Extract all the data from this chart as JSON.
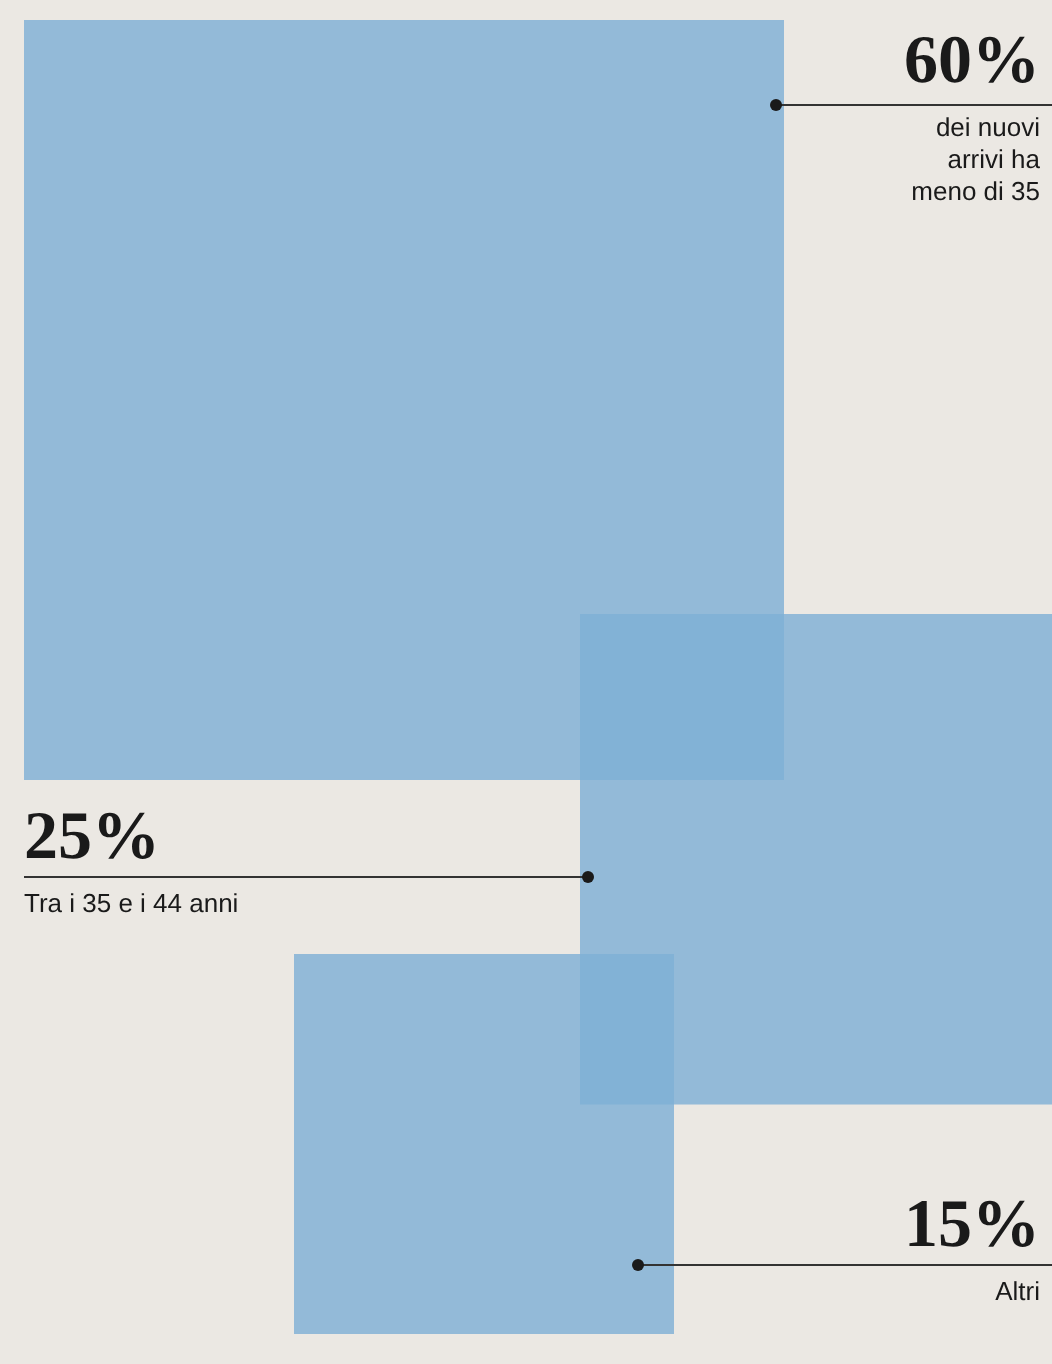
{
  "chart_data": {
    "type": "other",
    "categories": [
      "dei nuovi arrivi ha meno di 35",
      "Tra i 35 e i 44 anni",
      "Altri"
    ],
    "values": [
      60,
      25,
      15
    ],
    "value_labels": [
      "60%",
      "25%",
      "15%"
    ],
    "colors": [
      "#7fb0d6",
      "#7fb0d6",
      "#7fb0d6"
    ]
  }
}
